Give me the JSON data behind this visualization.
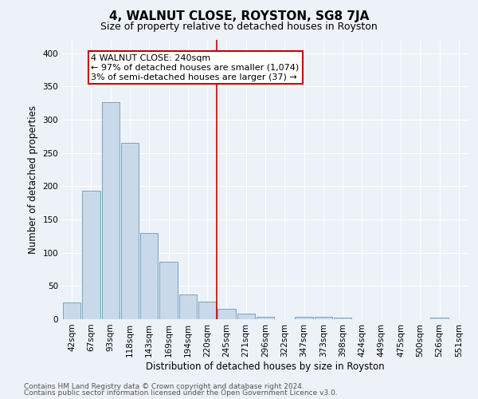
{
  "title": "4, WALNUT CLOSE, ROYSTON, SG8 7JA",
  "subtitle": "Size of property relative to detached houses in Royston",
  "xlabel": "Distribution of detached houses by size in Royston",
  "ylabel": "Number of detached properties",
  "bar_labels": [
    "42sqm",
    "67sqm",
    "93sqm",
    "118sqm",
    "143sqm",
    "169sqm",
    "194sqm",
    "220sqm",
    "245sqm",
    "271sqm",
    "296sqm",
    "322sqm",
    "347sqm",
    "373sqm",
    "398sqm",
    "424sqm",
    "449sqm",
    "475sqm",
    "500sqm",
    "526sqm",
    "551sqm"
  ],
  "bar_values": [
    25,
    193,
    327,
    265,
    130,
    87,
    37,
    26,
    16,
    8,
    4,
    0,
    4,
    4,
    3,
    0,
    0,
    0,
    0,
    3,
    0
  ],
  "bar_color": "#c9d9ea",
  "bar_edge_color": "#6699bb",
  "vline_x": 7.5,
  "vline_color": "#cc0000",
  "annotation_text": "4 WALNUT CLOSE: 240sqm\n← 97% of detached houses are smaller (1,074)\n3% of semi-detached houses are larger (37) →",
  "annotation_box_color": "#ffffff",
  "annotation_border_color": "#cc0000",
  "ylim": [
    0,
    420
  ],
  "yticks": [
    0,
    50,
    100,
    150,
    200,
    250,
    300,
    350,
    400
  ],
  "footer1": "Contains HM Land Registry data © Crown copyright and database right 2024.",
  "footer2": "Contains public sector information licensed under the Open Government Licence v3.0.",
  "background_color": "#edf2f8",
  "plot_bg_color": "#edf2f8",
  "grid_color": "#ffffff",
  "title_fontsize": 11,
  "subtitle_fontsize": 9,
  "axis_label_fontsize": 8.5,
  "tick_fontsize": 7.5,
  "footer_fontsize": 6.5,
  "annotation_fontsize": 8
}
